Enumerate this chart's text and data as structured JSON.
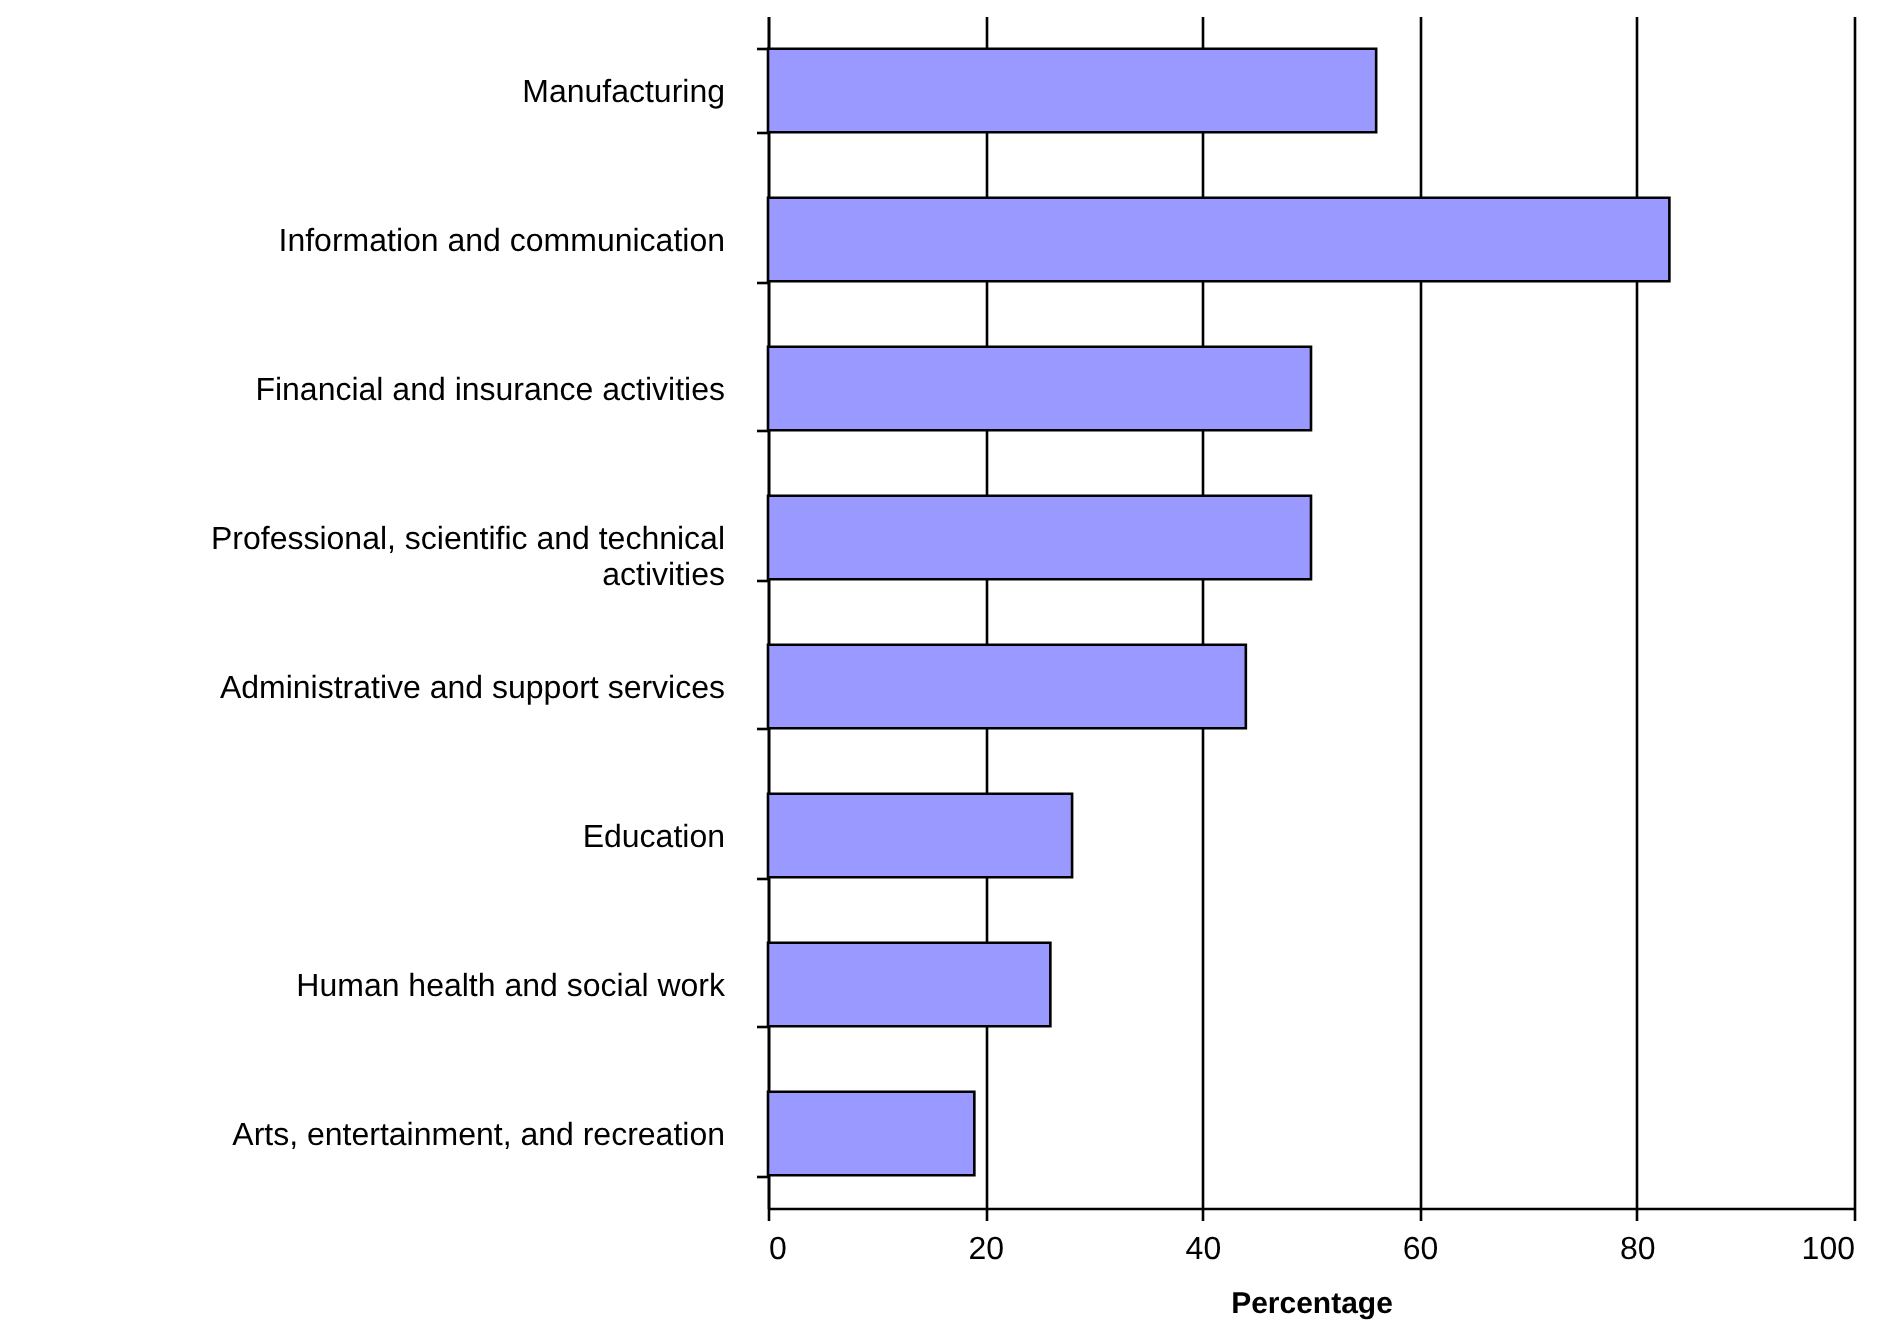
{
  "chart_data": {
    "type": "bar",
    "orientation": "horizontal",
    "xlabel": "Percentage",
    "categories": [
      "Manufacturing",
      "Information and communication",
      "Financial and insurance activities",
      "Professional, scientific and technical activities",
      "Administrative and support services",
      "Education",
      "Human health and social work",
      "Arts, entertainment, and recreation"
    ],
    "values": [
      56,
      83,
      50,
      50,
      44,
      28,
      26,
      19
    ],
    "color": "#9999ff",
    "xlim": [
      0,
      100
    ],
    "xticks": [
      0,
      20,
      40,
      60,
      80,
      100
    ],
    "grid": "x"
  }
}
